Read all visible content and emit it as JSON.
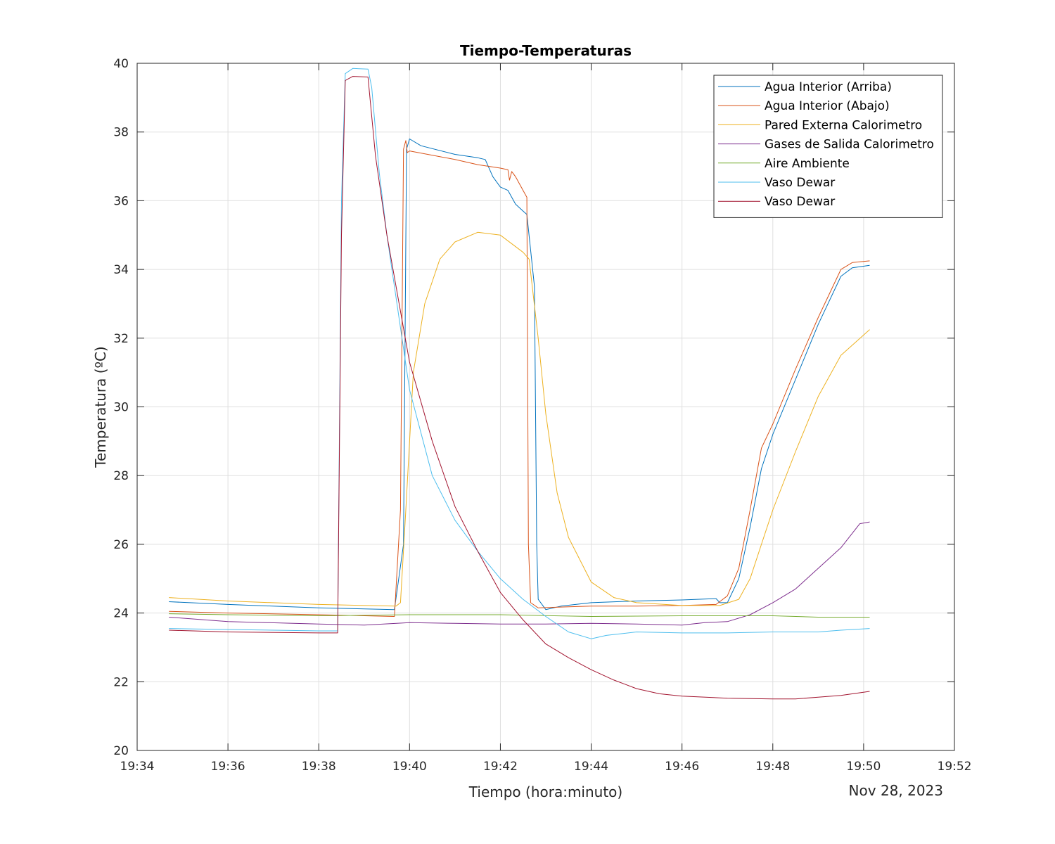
{
  "chart_data": {
    "type": "line",
    "title": "Tiempo-Temperaturas",
    "xlabel": "Tiempo (hora:minuto)",
    "ylabel": "Temperatura (ºC)",
    "date_label": "Nov 28, 2023",
    "x_unit": "time of day (hh:mm)",
    "xlim": [
      "19:34",
      "19:52"
    ],
    "ylim": [
      20,
      40
    ],
    "x_ticks": [
      "19:34",
      "19:36",
      "19:38",
      "19:40",
      "19:42",
      "19:44",
      "19:46",
      "19:48",
      "19:50",
      "19:52"
    ],
    "y_ticks": [
      "20",
      "22",
      "24",
      "26",
      "28",
      "30",
      "32",
      "34",
      "36",
      "38",
      "40"
    ],
    "grid": true,
    "legend_position": "top-right",
    "series": [
      {
        "name": "Agua Interior (Arriba)",
        "color": "#0072BD",
        "points": [
          [
            "19:34:42",
            24.33
          ],
          [
            "19:36:00",
            24.25
          ],
          [
            "19:38:00",
            24.15
          ],
          [
            "19:39:40",
            24.1
          ],
          [
            "19:39:52",
            26.0
          ],
          [
            "19:39:56",
            37.5
          ],
          [
            "19:40:00",
            37.8
          ],
          [
            "19:40:15",
            37.6
          ],
          [
            "19:41:00",
            37.35
          ],
          [
            "19:41:30",
            37.25
          ],
          [
            "19:41:40",
            37.2
          ],
          [
            "19:41:50",
            36.7
          ],
          [
            "19:42:00",
            36.4
          ],
          [
            "19:42:10",
            36.3
          ],
          [
            "19:42:20",
            35.9
          ],
          [
            "19:42:30",
            35.7
          ],
          [
            "19:42:35",
            35.6
          ],
          [
            "19:42:45",
            33.5
          ],
          [
            "19:42:48",
            26.0
          ],
          [
            "19:42:50",
            24.4
          ],
          [
            "19:43:00",
            24.1
          ],
          [
            "19:43:20",
            24.2
          ],
          [
            "19:44:00",
            24.3
          ],
          [
            "19:45:00",
            24.35
          ],
          [
            "19:46:00",
            24.38
          ],
          [
            "19:46:45",
            24.42
          ],
          [
            "19:46:50",
            24.3
          ],
          [
            "19:47:00",
            24.3
          ],
          [
            "19:47:15",
            25.0
          ],
          [
            "19:47:30",
            26.5
          ],
          [
            "19:47:45",
            28.2
          ],
          [
            "19:48:00",
            29.2
          ],
          [
            "19:48:30",
            30.8
          ],
          [
            "19:49:00",
            32.4
          ],
          [
            "19:49:30",
            33.8
          ],
          [
            "19:49:45",
            34.05
          ],
          [
            "19:50:08",
            34.12
          ]
        ]
      },
      {
        "name": "Agua Interior (Abajo)",
        "color": "#D95319",
        "points": [
          [
            "19:34:42",
            24.05
          ],
          [
            "19:36:00",
            24.0
          ],
          [
            "19:38:00",
            23.95
          ],
          [
            "19:39:40",
            23.9
          ],
          [
            "19:39:48",
            27.0
          ],
          [
            "19:39:52",
            37.5
          ],
          [
            "19:39:55",
            37.75
          ],
          [
            "19:39:57",
            37.4
          ],
          [
            "19:40:00",
            37.45
          ],
          [
            "19:41:00",
            37.2
          ],
          [
            "19:41:30",
            37.05
          ],
          [
            "19:42:00",
            36.95
          ],
          [
            "19:42:10",
            36.9
          ],
          [
            "19:42:12",
            36.6
          ],
          [
            "19:42:15",
            36.85
          ],
          [
            "19:42:20",
            36.7
          ],
          [
            "19:42:30",
            36.3
          ],
          [
            "19:42:35",
            36.1
          ],
          [
            "19:42:37",
            26.0
          ],
          [
            "19:42:40",
            24.3
          ],
          [
            "19:42:50",
            24.15
          ],
          [
            "19:43:30",
            24.18
          ],
          [
            "19:44:00",
            24.2
          ],
          [
            "19:45:00",
            24.2
          ],
          [
            "19:46:00",
            24.22
          ],
          [
            "19:46:45",
            24.25
          ],
          [
            "19:47:00",
            24.5
          ],
          [
            "19:47:15",
            25.3
          ],
          [
            "19:47:30",
            27.0
          ],
          [
            "19:47:45",
            28.8
          ],
          [
            "19:48:00",
            29.5
          ],
          [
            "19:48:30",
            31.1
          ],
          [
            "19:49:00",
            32.6
          ],
          [
            "19:49:30",
            34.0
          ],
          [
            "19:49:45",
            34.2
          ],
          [
            "19:50:08",
            34.25
          ]
        ]
      },
      {
        "name": "Pared Externa Calorimetro",
        "color": "#EDB120",
        "points": [
          [
            "19:34:42",
            24.45
          ],
          [
            "19:36:00",
            24.35
          ],
          [
            "19:38:00",
            24.25
          ],
          [
            "19:39:42",
            24.2
          ],
          [
            "19:39:48",
            24.3
          ],
          [
            "19:39:55",
            27.0
          ],
          [
            "19:40:05",
            31.0
          ],
          [
            "19:40:20",
            33.0
          ],
          [
            "19:40:40",
            34.3
          ],
          [
            "19:41:00",
            34.8
          ],
          [
            "19:41:30",
            35.08
          ],
          [
            "19:42:00",
            35.0
          ],
          [
            "19:42:30",
            34.5
          ],
          [
            "19:42:38",
            34.3
          ],
          [
            "19:42:50",
            32.0
          ],
          [
            "19:43:00",
            29.8
          ],
          [
            "19:43:15",
            27.5
          ],
          [
            "19:43:30",
            26.2
          ],
          [
            "19:44:00",
            24.9
          ],
          [
            "19:44:30",
            24.45
          ],
          [
            "19:45:00",
            24.3
          ],
          [
            "19:46:00",
            24.22
          ],
          [
            "19:46:50",
            24.22
          ],
          [
            "19:47:15",
            24.4
          ],
          [
            "19:47:30",
            25.0
          ],
          [
            "19:47:45",
            26.0
          ],
          [
            "19:48:00",
            27.0
          ],
          [
            "19:48:30",
            28.7
          ],
          [
            "19:49:00",
            30.3
          ],
          [
            "19:49:30",
            31.5
          ],
          [
            "19:50:08",
            32.25
          ]
        ]
      },
      {
        "name": "Gases de Salida Calorimetro",
        "color": "#7E2F8E",
        "points": [
          [
            "19:34:42",
            23.88
          ],
          [
            "19:36:00",
            23.75
          ],
          [
            "19:38:00",
            23.68
          ],
          [
            "19:39:00",
            23.65
          ],
          [
            "19:40:00",
            23.72
          ],
          [
            "19:41:00",
            23.7
          ],
          [
            "19:42:00",
            23.68
          ],
          [
            "19:43:00",
            23.68
          ],
          [
            "19:44:00",
            23.7
          ],
          [
            "19:45:00",
            23.68
          ],
          [
            "19:46:00",
            23.65
          ],
          [
            "19:46:30",
            23.72
          ],
          [
            "19:47:00",
            23.75
          ],
          [
            "19:47:30",
            23.95
          ],
          [
            "19:48:00",
            24.3
          ],
          [
            "19:48:30",
            24.7
          ],
          [
            "19:49:00",
            25.3
          ],
          [
            "19:49:30",
            25.9
          ],
          [
            "19:49:55",
            26.6
          ],
          [
            "19:50:08",
            26.65
          ]
        ]
      },
      {
        "name": "Aire Ambiente",
        "color": "#77AC30",
        "points": [
          [
            "19:34:42",
            23.98
          ],
          [
            "19:36:00",
            23.95
          ],
          [
            "19:38:00",
            23.92
          ],
          [
            "19:40:00",
            23.95
          ],
          [
            "19:42:00",
            23.95
          ],
          [
            "19:44:00",
            23.9
          ],
          [
            "19:46:00",
            23.92
          ],
          [
            "19:48:00",
            23.92
          ],
          [
            "19:49:00",
            23.88
          ],
          [
            "19:50:08",
            23.88
          ]
        ]
      },
      {
        "name": "Vaso Dewar",
        "color": "#4DBEEE",
        "points": [
          [
            "19:34:42",
            23.55
          ],
          [
            "19:36:00",
            23.52
          ],
          [
            "19:38:00",
            23.48
          ],
          [
            "19:38:25",
            23.48
          ],
          [
            "19:38:30",
            36.0
          ],
          [
            "19:38:35",
            39.7
          ],
          [
            "19:38:45",
            39.85
          ],
          [
            "19:39:05",
            39.83
          ],
          [
            "19:39:10",
            39.3
          ],
          [
            "19:39:20",
            36.8
          ],
          [
            "19:39:30",
            35.0
          ],
          [
            "19:40:00",
            30.5
          ],
          [
            "19:40:30",
            28.0
          ],
          [
            "19:41:00",
            26.7
          ],
          [
            "19:41:30",
            25.8
          ],
          [
            "19:42:00",
            25.0
          ],
          [
            "19:42:30",
            24.4
          ],
          [
            "19:43:00",
            23.9
          ],
          [
            "19:43:30",
            23.45
          ],
          [
            "19:44:00",
            23.25
          ],
          [
            "19:44:20",
            23.35
          ],
          [
            "19:45:00",
            23.45
          ],
          [
            "19:46:00",
            23.42
          ],
          [
            "19:47:00",
            23.42
          ],
          [
            "19:48:00",
            23.45
          ],
          [
            "19:49:00",
            23.45
          ],
          [
            "19:49:30",
            23.5
          ],
          [
            "19:50:08",
            23.55
          ]
        ]
      },
      {
        "name": "Vaso Dewar",
        "color": "#A2142F",
        "points": [
          [
            "19:34:42",
            23.5
          ],
          [
            "19:36:00",
            23.45
          ],
          [
            "19:38:00",
            23.42
          ],
          [
            "19:38:25",
            23.42
          ],
          [
            "19:38:30",
            35.0
          ],
          [
            "19:38:35",
            39.5
          ],
          [
            "19:38:45",
            39.62
          ],
          [
            "19:39:05",
            39.6
          ],
          [
            "19:39:15",
            37.3
          ],
          [
            "19:39:30",
            35.0
          ],
          [
            "19:40:00",
            31.3
          ],
          [
            "19:40:30",
            29.0
          ],
          [
            "19:41:00",
            27.1
          ],
          [
            "19:41:30",
            25.8
          ],
          [
            "19:42:00",
            24.6
          ],
          [
            "19:42:30",
            23.8
          ],
          [
            "19:43:00",
            23.1
          ],
          [
            "19:43:30",
            22.7
          ],
          [
            "19:44:00",
            22.35
          ],
          [
            "19:44:30",
            22.05
          ],
          [
            "19:45:00",
            21.8
          ],
          [
            "19:45:30",
            21.65
          ],
          [
            "19:46:00",
            21.58
          ],
          [
            "19:47:00",
            21.52
          ],
          [
            "19:48:00",
            21.5
          ],
          [
            "19:48:30",
            21.5
          ],
          [
            "19:49:00",
            21.55
          ],
          [
            "19:49:30",
            21.6
          ],
          [
            "19:50:08",
            21.72
          ]
        ]
      }
    ]
  }
}
